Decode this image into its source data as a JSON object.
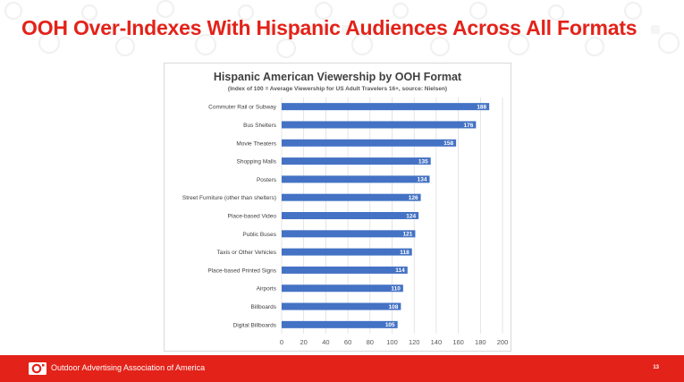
{
  "slide": {
    "title": "OOH Over-Indexes With Hispanic Audiences Across All Formats",
    "footer_text": "Outdoor Advertising Association of America",
    "page_number": "13"
  },
  "colors": {
    "accent": "#E32219",
    "bar": "#4472C4",
    "bar_label": "#ffffff",
    "grid": "#d9d9d9"
  },
  "chart_data": {
    "type": "bar",
    "orientation": "horizontal",
    "title": "Hispanic American Viewership by OOH Format",
    "subtitle": "(Index of 100 = Average Viewership for US Adult Travelers 16+, source: Nielsen)",
    "categories": [
      "Commuter Rail or Subway",
      "Bus Shelters",
      "Movie Theaters",
      "Shopping Malls",
      "Posters",
      "Street Furniture (other than shelters)",
      "Place-based Video",
      "Public Buses",
      "Taxis or Other Vehicles",
      "Place-based Printed Signs",
      "Airports",
      "Billboards",
      "Digital Billboards"
    ],
    "values": [
      188,
      176,
      158,
      135,
      134,
      126,
      124,
      121,
      118,
      114,
      110,
      108,
      105
    ],
    "xlim": [
      0,
      200
    ],
    "xticks": [
      0,
      20,
      40,
      60,
      80,
      100,
      120,
      140,
      160,
      180,
      200
    ],
    "grid": "vertical",
    "legend": "none",
    "data_labels": "inside-end"
  }
}
